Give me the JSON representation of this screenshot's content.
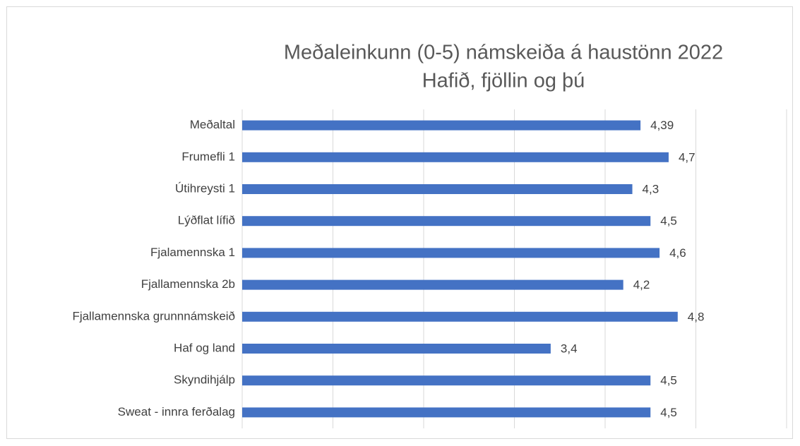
{
  "chart_data": {
    "type": "barh",
    "title": "Meðaleinkunn (0-5) námskeiða á haustönn 2022",
    "subtitle": "Hafið, fjöllin og þú",
    "categories": [
      "Meðaltal",
      "Frumefli 1",
      "Útihreysti 1",
      "Lýðflat lífið",
      "Fjalamennska 1",
      "Fjallamennska 2b",
      "Fjallamennska grunnnámskeið",
      "Haf og land",
      "Skyndihjálp",
      "Sweat - innra ferðalag"
    ],
    "values": [
      4.39,
      4.7,
      4.3,
      4.5,
      4.6,
      4.2,
      4.8,
      3.4,
      4.5,
      4.5
    ],
    "value_labels": [
      "4,39",
      "4,7",
      "4,3",
      "4,5",
      "4,6",
      "4,2",
      "4,8",
      "3,4",
      "4,5",
      "4,5"
    ],
    "color": "#4472c4",
    "xlim": [
      0,
      6
    ],
    "xticks": [
      0,
      1,
      2,
      3,
      4,
      5,
      6
    ],
    "grid": true
  }
}
